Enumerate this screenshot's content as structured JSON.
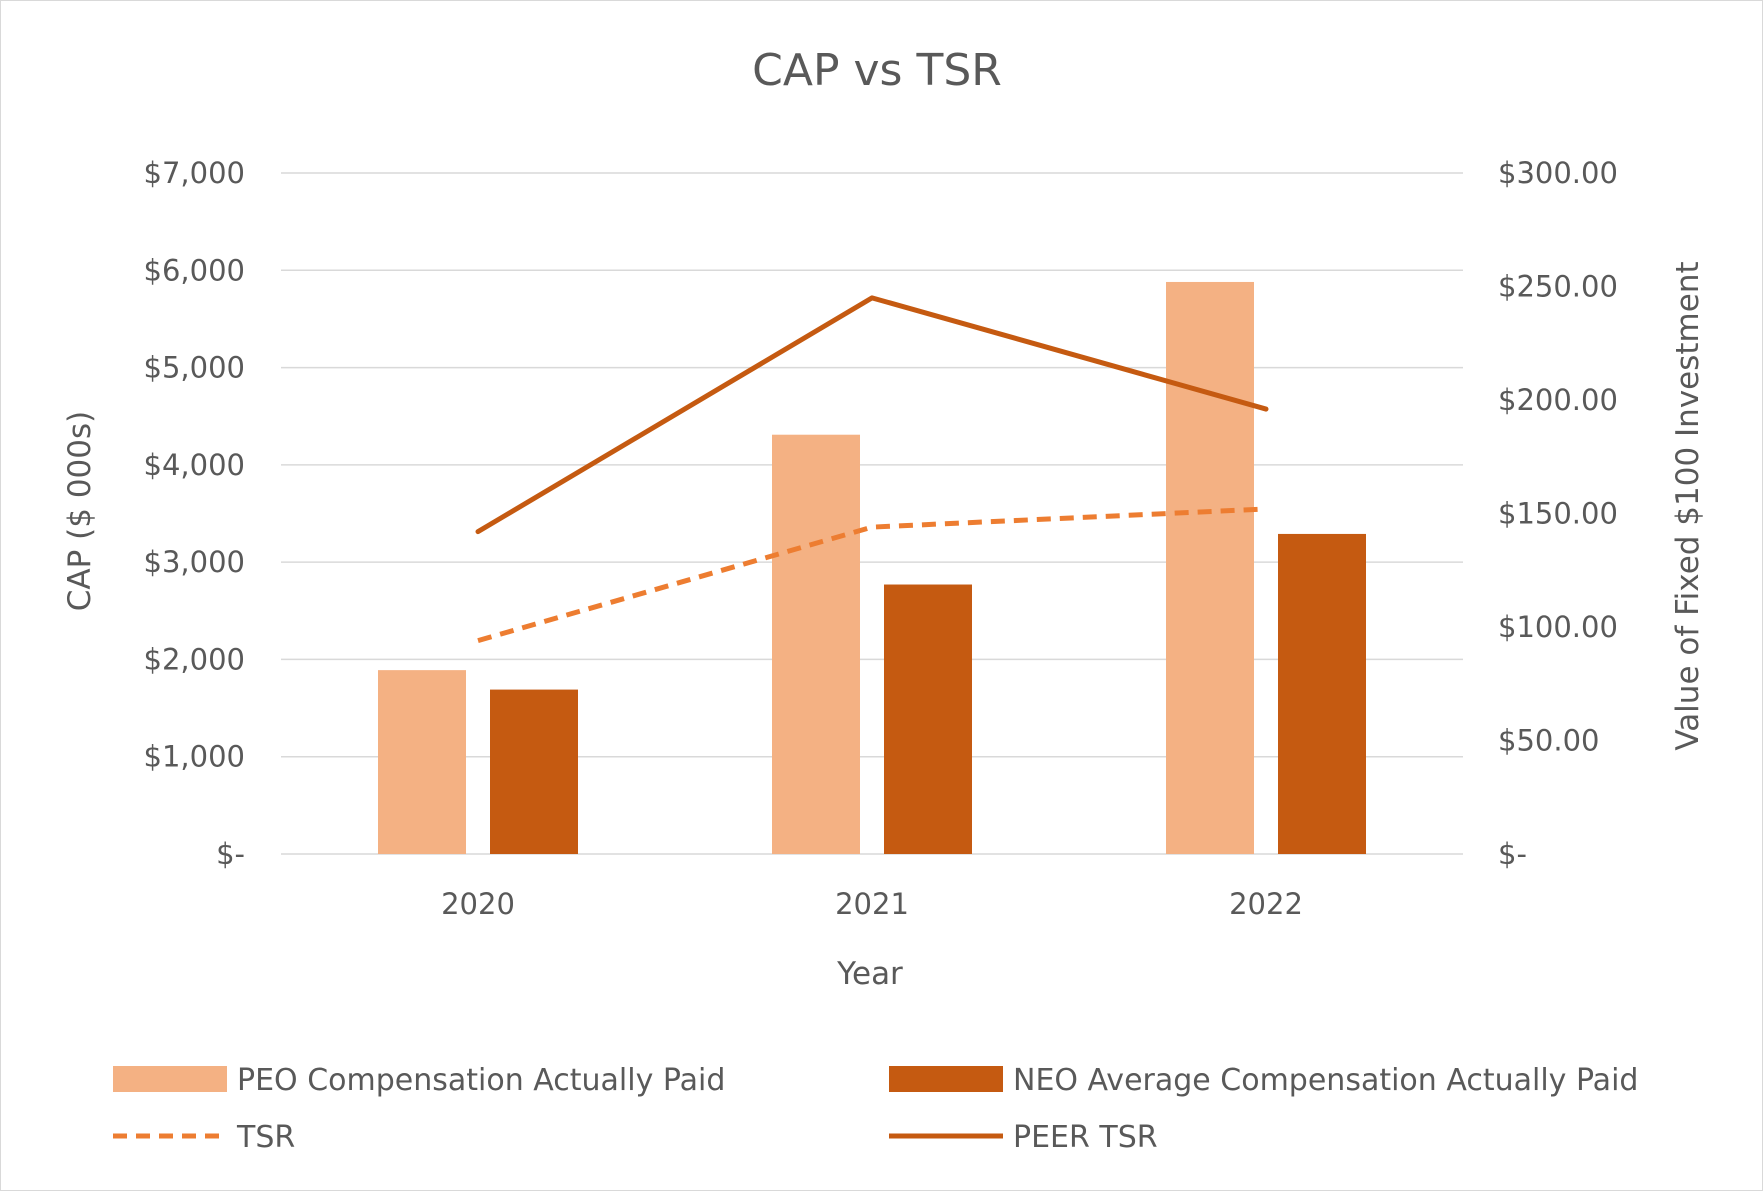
{
  "chart_data": {
    "type": "bar",
    "title": "CAP vs TSR",
    "xlabel": "Year",
    "ylabel": "CAP ($ 000s)",
    "y2label": "Value of Fixed $100 Investment",
    "categories": [
      "2020",
      "2021",
      "2022"
    ],
    "ylim": [
      0,
      7000
    ],
    "y2lim": [
      0,
      300
    ],
    "yticks": [
      0,
      1000,
      2000,
      3000,
      4000,
      5000,
      6000,
      7000
    ],
    "ytick_labels": [
      "$-",
      "$1,000",
      "$2,000",
      "$3,000",
      "$4,000",
      "$5,000",
      "$6,000",
      "$7,000"
    ],
    "y2ticks": [
      0,
      50,
      100,
      150,
      200,
      250,
      300
    ],
    "y2tick_labels": [
      "$-",
      "$50.00",
      "$100.00",
      "$150.00",
      "$200.00",
      "$250.00",
      "$300.00"
    ],
    "grid": true,
    "legend_position": "bottom",
    "series": [
      {
        "name": "PEO Compensation Actually Paid",
        "kind": "bar",
        "axis": "left",
        "color": "#F4B183",
        "values": [
          1890,
          4310,
          5880
        ]
      },
      {
        "name": "NEO Average Compensation Actually Paid",
        "kind": "bar",
        "axis": "left",
        "color": "#C55A11",
        "values": [
          1690,
          2770,
          3290
        ]
      },
      {
        "name": "TSR",
        "kind": "line",
        "style": "dashed",
        "axis": "right",
        "color": "#ED7D31",
        "values": [
          94,
          144,
          152
        ]
      },
      {
        "name": "PEER TSR",
        "kind": "line",
        "style": "solid",
        "axis": "right",
        "color": "#C55A11",
        "values": [
          142,
          245,
          196
        ]
      }
    ]
  }
}
